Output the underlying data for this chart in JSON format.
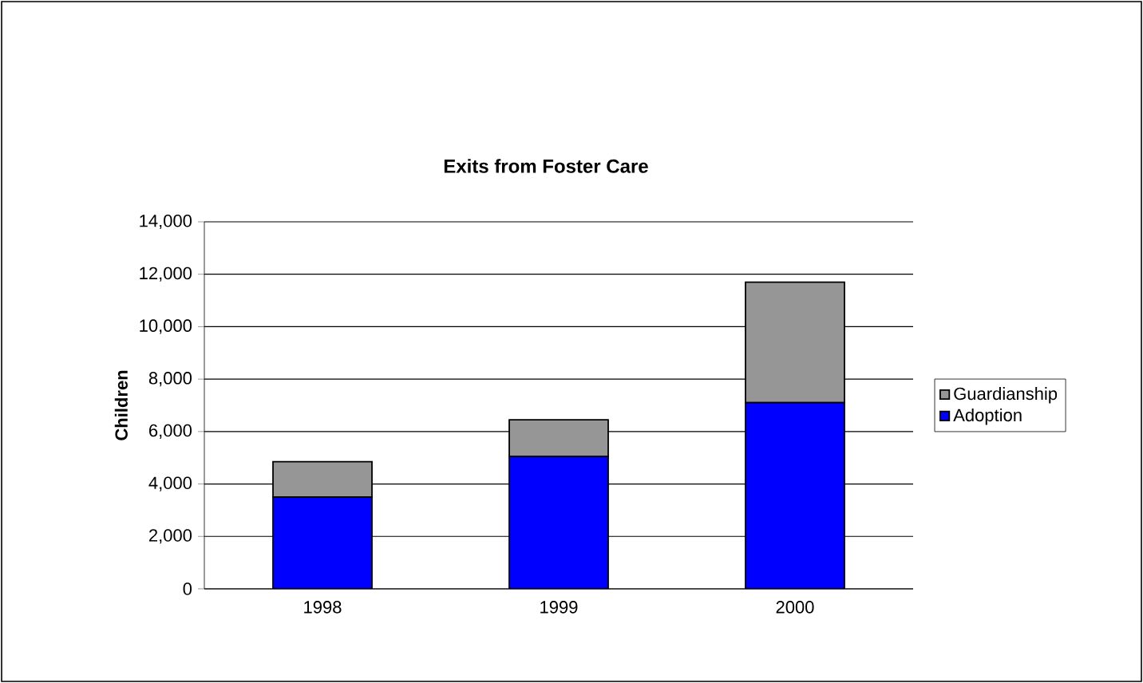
{
  "chart_data": {
    "type": "bar",
    "title": "Exits from Foster Care",
    "ylabel": "Children",
    "categories": [
      "1998",
      "1999",
      "2000"
    ],
    "stacked": true,
    "series": [
      {
        "name": "Adoption",
        "color": "#0000ff",
        "values": [
          3500,
          5050,
          7100
        ]
      },
      {
        "name": "Guardianship",
        "color": "#969696",
        "values": [
          1350,
          1400,
          4600
        ]
      }
    ],
    "ylim": [
      0,
      14000
    ],
    "yticks": [
      {
        "value": 0,
        "label": "0"
      },
      {
        "value": 2000,
        "label": "2,000"
      },
      {
        "value": 4000,
        "label": "4,000"
      },
      {
        "value": 6000,
        "label": "6,000"
      },
      {
        "value": 8000,
        "label": "8,000"
      },
      {
        "value": 10000,
        "label": "10,000"
      },
      {
        "value": 12000,
        "label": "12,000"
      },
      {
        "value": 14000,
        "label": "14,000"
      }
    ],
    "grid": "y",
    "legend": "right"
  }
}
